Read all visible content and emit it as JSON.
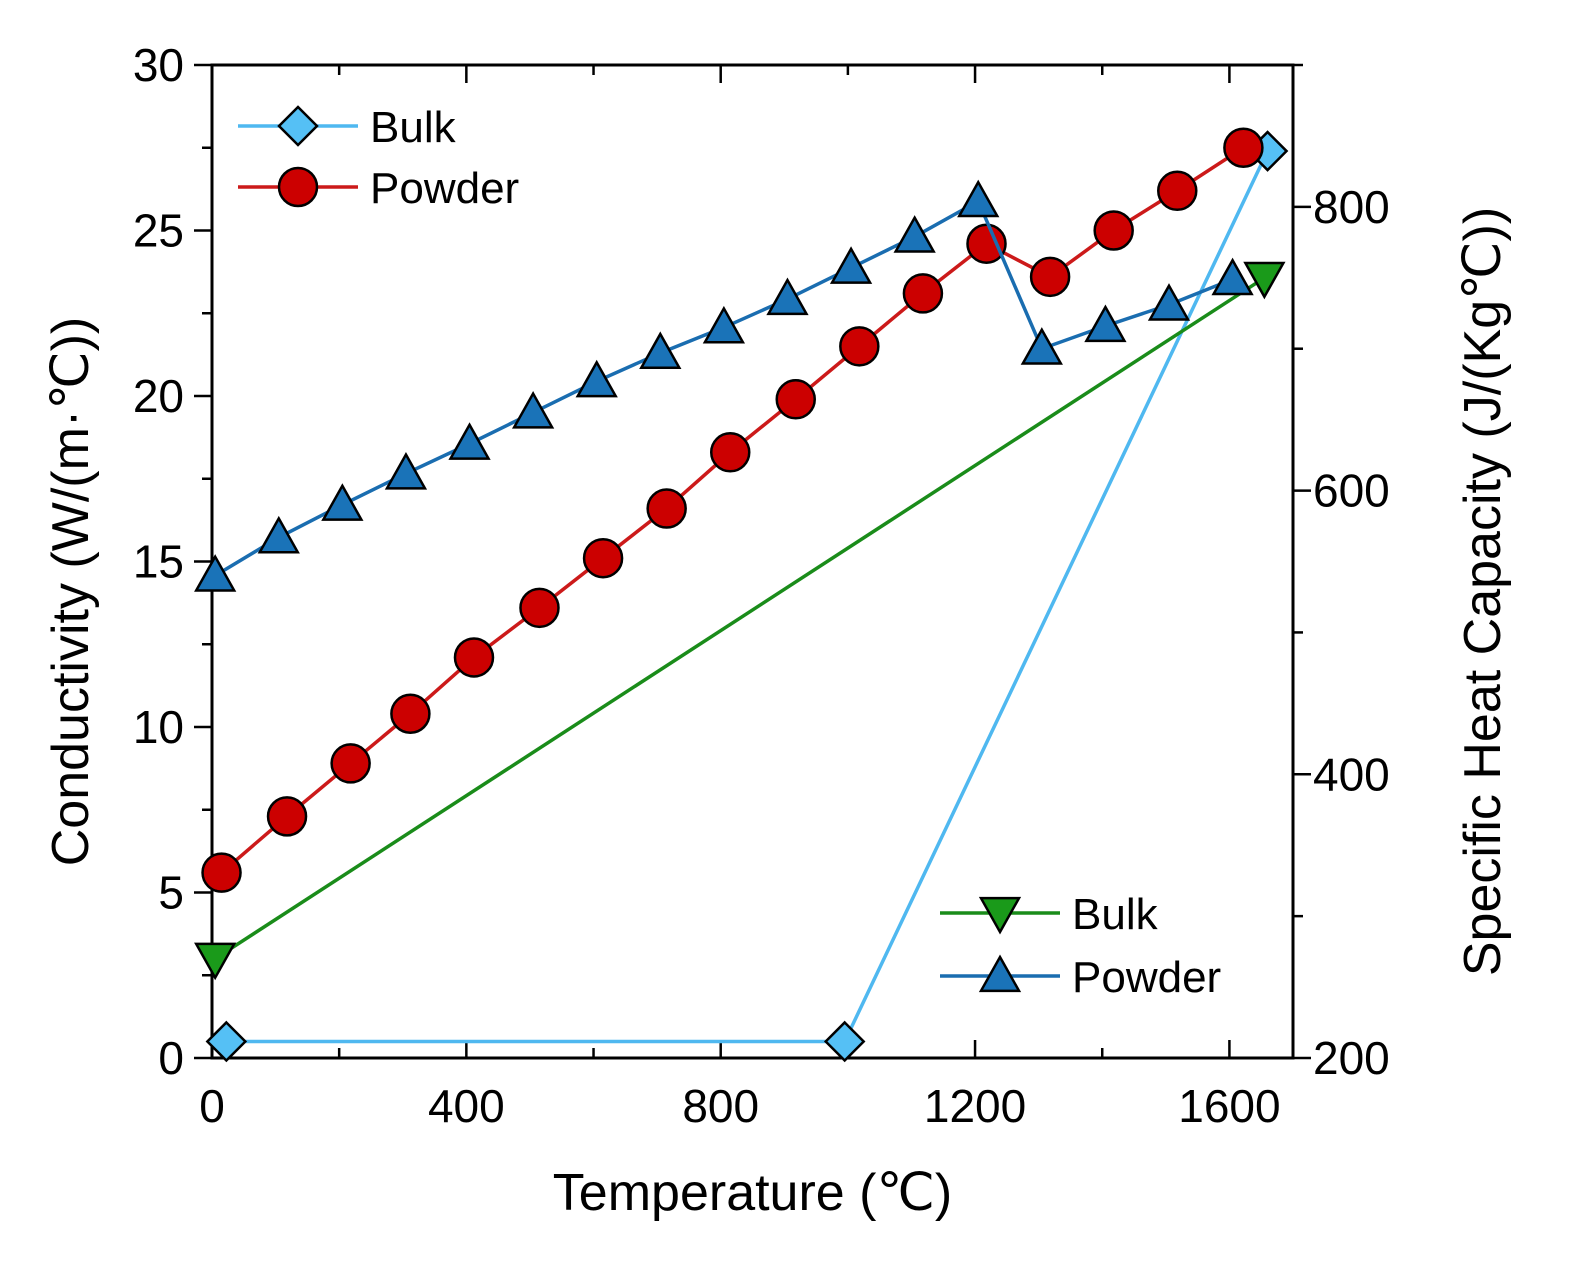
{
  "chart_data": {
    "type": "line",
    "xlabel": "Temperature (℃)",
    "ylabel_left": "Conductivity  (W/(m·℃))",
    "ylabel_right": "Specific Heat Capacity (J/(Kg℃))",
    "xlim": [
      0,
      1700
    ],
    "ylim_left": [
      0,
      30
    ],
    "ylim_right": [
      200,
      900
    ],
    "xticks": [
      0,
      400,
      800,
      1200,
      1600
    ],
    "yticks_left": [
      0,
      5,
      10,
      15,
      20,
      25,
      30
    ],
    "yticks_right": [
      200,
      400,
      600,
      800
    ],
    "series": [
      {
        "name": "Bulk",
        "axis": "left",
        "color": "#4fb8f0",
        "marker": "diamond",
        "x": [
          10,
          995,
          1660
        ],
        "y": [
          0.5,
          0.5,
          27.4
        ]
      },
      {
        "name": "Powder",
        "axis": "left",
        "color": "#cc1a1a",
        "marker": "circle",
        "x": [
          15,
          118,
          218,
          312,
          412,
          515,
          615,
          715,
          815,
          918,
          1018,
          1118,
          1218,
          1318,
          1418,
          1518,
          1622
        ],
        "y": [
          5.6,
          7.3,
          8.9,
          10.4,
          12.1,
          13.6,
          15.1,
          16.6,
          18.3,
          19.9,
          21.5,
          23.1,
          24.6,
          23.6,
          25.0,
          26.2,
          27.5
        ]
      },
      {
        "name": "Bulk",
        "axis": "right",
        "color": "#1a8c1a",
        "marker": "triangle-down",
        "x": [
          5,
          1655
        ],
        "y": [
          270,
          750
        ]
      },
      {
        "name": "Powder",
        "axis": "right",
        "color": "#1a6db0",
        "marker": "triangle-up",
        "x": [
          5,
          105,
          205,
          305,
          405,
          505,
          605,
          705,
          805,
          905,
          1005,
          1105,
          1205,
          1305,
          1405,
          1505,
          1605
        ],
        "y": [
          540,
          567,
          590,
          612,
          633,
          655,
          677,
          697,
          715,
          735,
          757,
          779,
          804,
          700,
          716,
          731,
          749
        ]
      }
    ]
  }
}
